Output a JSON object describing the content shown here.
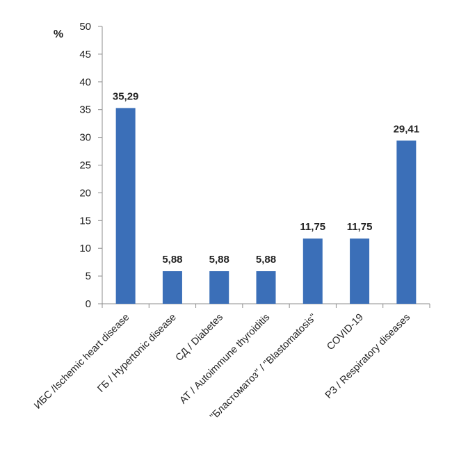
{
  "chart_data": {
    "type": "bar",
    "categories": [
      "ИБС /Ischemic heart disease",
      "ГБ / Hypertonic disease",
      "СД / Diabetes",
      "АТ / Autoimmune thyroiditis",
      "\"Бластоматоз\" / \"Blastomatosis\"",
      "COVID-19",
      "РЗ / Respiratory diseases"
    ],
    "values": [
      35.29,
      5.88,
      5.88,
      5.88,
      11.75,
      11.75,
      29.41
    ],
    "data_labels": [
      "35,29",
      "5,88",
      "5,88",
      "5,88",
      "11,75",
      "11,75",
      "29,41"
    ],
    "ylabel": "%",
    "ylim": [
      0,
      50
    ],
    "yticks": [
      0,
      5,
      10,
      15,
      20,
      25,
      30,
      35,
      40,
      45,
      50
    ],
    "bar_color": "#3b6fb8",
    "grid": false,
    "legend": "none"
  }
}
